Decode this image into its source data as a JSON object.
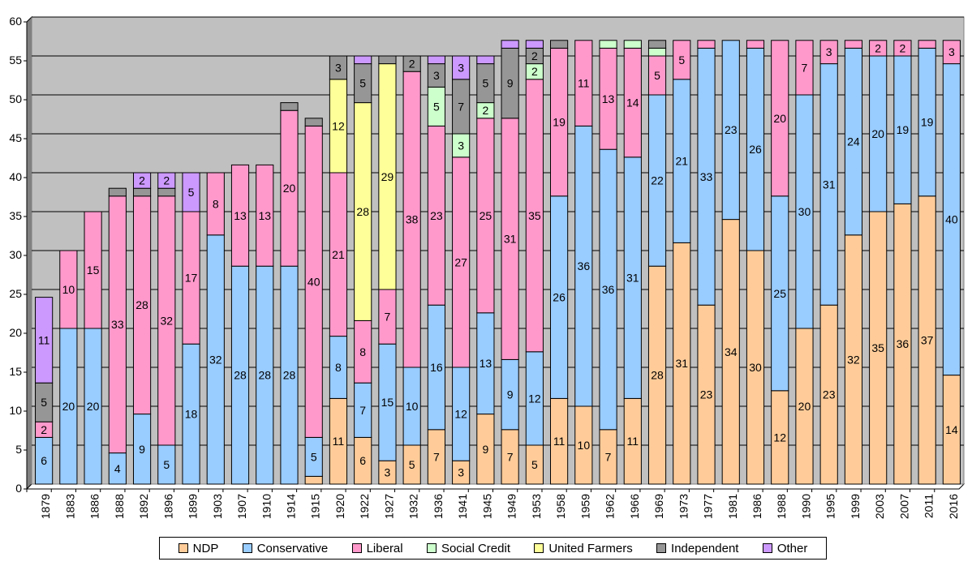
{
  "chart_data": {
    "type": "bar",
    "stacked": true,
    "title": "",
    "xlabel": "",
    "ylabel": "",
    "ylim": [
      0,
      60
    ],
    "yticks": [
      0,
      5,
      10,
      15,
      20,
      25,
      30,
      35,
      40,
      45,
      50,
      55,
      60
    ],
    "grid": "horizontal",
    "legend_position": "bottom",
    "plot_background": "#c0c0c0",
    "categories": [
      "1879",
      "1883",
      "1886",
      "1888",
      "1892",
      "1896",
      "1899",
      "1903",
      "1907",
      "1910",
      "1914",
      "1915",
      "1920",
      "1922",
      "1927",
      "1932",
      "1936",
      "1941",
      "1945",
      "1949",
      "1953",
      "1958",
      "1959",
      "1962",
      "1966",
      "1969",
      "1973",
      "1977",
      "1981",
      "1986",
      "1988",
      "1990",
      "1995",
      "1999",
      "2003",
      "2007",
      "2011",
      "2016"
    ],
    "series": [
      {
        "name": "NDP",
        "color": "#ffcc99",
        "values": [
          0,
          0,
          0,
          0,
          0,
          0,
          0,
          0,
          0,
          0,
          0,
          1,
          11,
          6,
          3,
          5,
          7,
          3,
          9,
          7,
          5,
          11,
          10,
          7,
          11,
          28,
          31,
          23,
          34,
          30,
          12,
          20,
          23,
          32,
          35,
          36,
          37,
          14
        ]
      },
      {
        "name": "Conservative",
        "color": "#99ccff",
        "values": [
          6,
          20,
          20,
          4,
          9,
          5,
          18,
          32,
          28,
          28,
          28,
          5,
          8,
          7,
          15,
          10,
          16,
          12,
          13,
          9,
          12,
          26,
          36,
          36,
          31,
          22,
          21,
          33,
          23,
          26,
          25,
          30,
          31,
          24,
          20,
          19,
          19,
          40
        ]
      },
      {
        "name": "Liberal",
        "color": "#ff99cc",
        "values": [
          2,
          10,
          15,
          33,
          28,
          32,
          17,
          8,
          13,
          13,
          20,
          40,
          21,
          8,
          7,
          38,
          23,
          27,
          25,
          31,
          35,
          19,
          11,
          13,
          14,
          5,
          5,
          1,
          0,
          1,
          20,
          7,
          3,
          1,
          2,
          2,
          1,
          3
        ]
      },
      {
        "name": "Social Credit",
        "color": "#ccffcc",
        "values": [
          0,
          0,
          0,
          0,
          0,
          0,
          0,
          0,
          0,
          0,
          0,
          0,
          0,
          0,
          0,
          0,
          5,
          3,
          2,
          0,
          2,
          0,
          0,
          1,
          1,
          1,
          0,
          0,
          0,
          0,
          0,
          0,
          0,
          0,
          0,
          0,
          0,
          0
        ]
      },
      {
        "name": "United Farmers",
        "color": "#ffff99",
        "values": [
          0,
          0,
          0,
          0,
          0,
          0,
          0,
          0,
          0,
          0,
          0,
          0,
          12,
          28,
          29,
          0,
          0,
          0,
          0,
          0,
          0,
          0,
          0,
          0,
          0,
          0,
          0,
          0,
          0,
          0,
          0,
          0,
          0,
          0,
          0,
          0,
          0,
          0
        ]
      },
      {
        "name": "Independent",
        "color": "#969696",
        "values": [
          5,
          0,
          0,
          1,
          1,
          1,
          0,
          0,
          0,
          0,
          1,
          1,
          3,
          5,
          1,
          2,
          3,
          7,
          5,
          9,
          2,
          1,
          0,
          0,
          0,
          1,
          0,
          0,
          0,
          0,
          0,
          0,
          0,
          0,
          0,
          0,
          0,
          0
        ]
      },
      {
        "name": "Other",
        "color": "#cc99ff",
        "values": [
          11,
          0,
          0,
          0,
          2,
          2,
          5,
          0,
          0,
          0,
          0,
          0,
          0,
          1,
          0,
          0,
          1,
          3,
          1,
          1,
          1,
          0,
          0,
          0,
          0,
          0,
          0,
          0,
          0,
          0,
          0,
          0,
          0,
          0,
          0,
          0,
          0,
          0
        ]
      }
    ]
  }
}
